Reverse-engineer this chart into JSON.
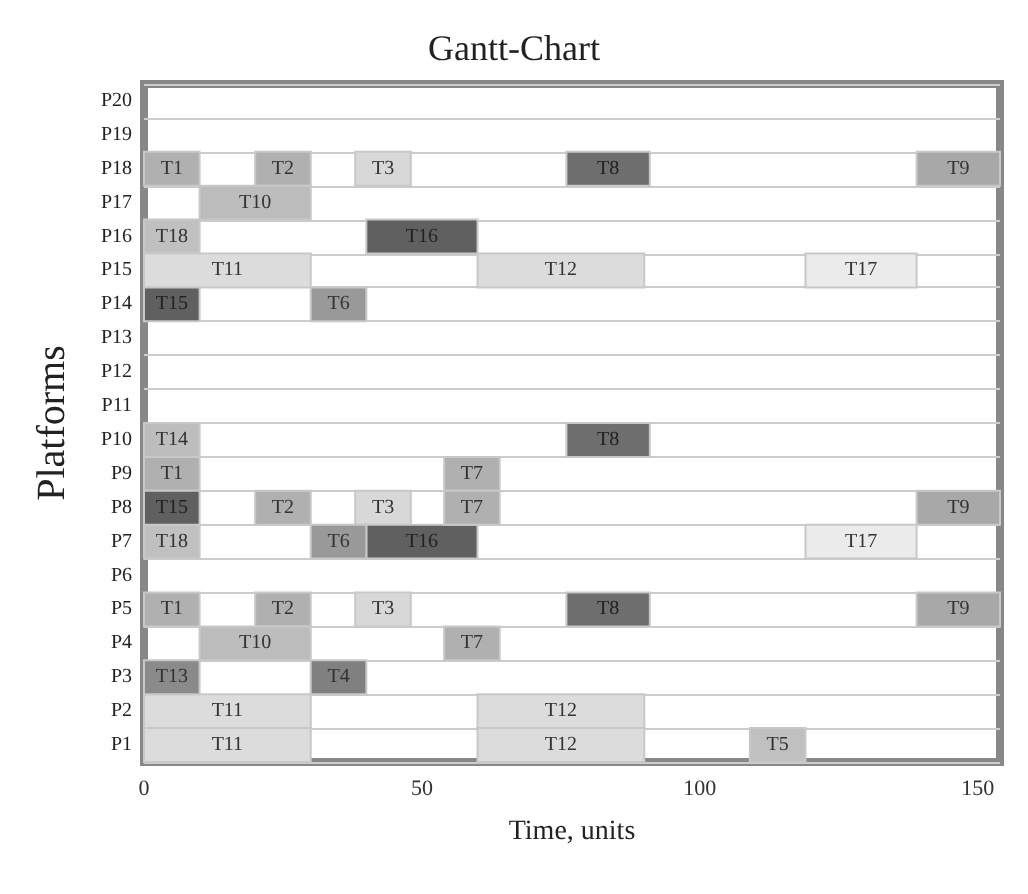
{
  "chart_data": {
    "type": "bar",
    "orientation": "horizontal",
    "title": "Gantt-Chart",
    "xlabel": "Time, units",
    "ylabel": "Platforms",
    "categories": [
      "P20",
      "P19",
      "P18",
      "P17",
      "P16",
      "P15",
      "P14",
      "P13",
      "P12",
      "P11",
      "P10",
      "P9",
      "P8",
      "P7",
      "P6",
      "P5",
      "P4",
      "P3",
      "P2",
      "P1"
    ],
    "xlim": [
      0,
      154
    ],
    "xticks": [
      0,
      50,
      100,
      150
    ],
    "grid": "y",
    "series": [
      {
        "name": "T1",
        "color": "#b0b0b0",
        "values": [
          null,
          null,
          10,
          null,
          null,
          null,
          null,
          null,
          null,
          null,
          null,
          10,
          null,
          null,
          null,
          10,
          null,
          null,
          null,
          null
        ],
        "base": [
          null,
          null,
          0,
          null,
          null,
          null,
          null,
          null,
          null,
          null,
          null,
          0,
          null,
          null,
          null,
          0,
          null,
          null,
          null,
          null
        ]
      },
      {
        "name": "T2",
        "color": "#b0b0b0",
        "values": [
          null,
          null,
          10,
          null,
          null,
          null,
          null,
          null,
          null,
          null,
          null,
          null,
          10,
          null,
          null,
          10,
          null,
          null,
          null,
          null
        ],
        "base": [
          null,
          null,
          20,
          null,
          null,
          null,
          null,
          null,
          null,
          null,
          null,
          null,
          20,
          null,
          null,
          20,
          null,
          null,
          null,
          null
        ]
      },
      {
        "name": "T3",
        "color": "#d8d8d8",
        "values": [
          null,
          null,
          10,
          null,
          null,
          null,
          null,
          null,
          null,
          null,
          null,
          null,
          10,
          null,
          null,
          10,
          null,
          null,
          null,
          null
        ],
        "base": [
          null,
          null,
          38,
          null,
          null,
          null,
          null,
          null,
          null,
          null,
          null,
          null,
          38,
          null,
          null,
          38,
          null,
          null,
          null,
          null
        ]
      },
      {
        "name": "T8",
        "color": "#6e6e6e",
        "values": [
          null,
          null,
          15,
          null,
          null,
          null,
          null,
          null,
          null,
          null,
          15,
          null,
          null,
          null,
          null,
          15,
          null,
          null,
          null,
          null
        ],
        "base": [
          null,
          null,
          76,
          null,
          null,
          null,
          null,
          null,
          null,
          null,
          76,
          null,
          null,
          null,
          null,
          76,
          null,
          null,
          null,
          null
        ]
      },
      {
        "name": "T9",
        "color": "#a8a8a8",
        "values": [
          null,
          null,
          15,
          null,
          null,
          null,
          null,
          null,
          null,
          null,
          null,
          null,
          15,
          null,
          null,
          15,
          null,
          null,
          null,
          null
        ],
        "base": [
          null,
          null,
          139,
          null,
          null,
          null,
          null,
          null,
          null,
          null,
          null,
          null,
          139,
          null,
          null,
          139,
          null,
          null,
          null,
          null
        ]
      },
      {
        "name": "T10",
        "color": "#bcbcbc",
        "values": [
          null,
          null,
          null,
          20,
          null,
          null,
          null,
          null,
          null,
          null,
          null,
          null,
          null,
          null,
          null,
          null,
          20,
          null,
          null,
          null
        ],
        "base": [
          null,
          null,
          null,
          10,
          null,
          null,
          null,
          null,
          null,
          null,
          null,
          null,
          null,
          null,
          null,
          null,
          10,
          null,
          null,
          null
        ]
      },
      {
        "name": "T18",
        "color": "#c0c0c0",
        "values": [
          null,
          null,
          null,
          null,
          10,
          null,
          null,
          null,
          null,
          null,
          null,
          null,
          null,
          10,
          null,
          null,
          null,
          null,
          null,
          null
        ],
        "base": [
          null,
          null,
          null,
          null,
          0,
          null,
          null,
          null,
          null,
          null,
          null,
          null,
          null,
          0,
          null,
          null,
          null,
          null,
          null,
          null
        ]
      },
      {
        "name": "T16",
        "color": "#606060",
        "values": [
          null,
          null,
          null,
          null,
          20,
          null,
          null,
          null,
          null,
          null,
          null,
          null,
          null,
          20,
          null,
          null,
          null,
          null,
          null,
          null
        ],
        "base": [
          null,
          null,
          null,
          null,
          40,
          null,
          null,
          null,
          null,
          null,
          null,
          null,
          null,
          40,
          null,
          null,
          null,
          null,
          null,
          null
        ]
      },
      {
        "name": "T11",
        "color": "#dcdcdc",
        "values": [
          null,
          null,
          null,
          null,
          null,
          30,
          null,
          null,
          null,
          null,
          null,
          null,
          null,
          null,
          null,
          null,
          null,
          null,
          30,
          30
        ],
        "base": [
          null,
          null,
          null,
          null,
          null,
          0,
          null,
          null,
          null,
          null,
          null,
          null,
          null,
          null,
          null,
          null,
          null,
          null,
          0,
          0
        ]
      },
      {
        "name": "T12",
        "color": "#dcdcdc",
        "values": [
          null,
          null,
          null,
          null,
          null,
          30,
          null,
          null,
          null,
          null,
          null,
          null,
          null,
          null,
          null,
          null,
          null,
          null,
          30,
          30
        ],
        "base": [
          null,
          null,
          null,
          null,
          null,
          60,
          null,
          null,
          null,
          null,
          null,
          null,
          null,
          null,
          null,
          null,
          null,
          null,
          60,
          60
        ]
      },
      {
        "name": "T17",
        "color": "#ebebeb",
        "values": [
          null,
          null,
          null,
          null,
          null,
          20,
          null,
          null,
          null,
          null,
          null,
          null,
          null,
          20,
          null,
          null,
          null,
          null,
          null,
          null
        ],
        "base": [
          null,
          null,
          null,
          null,
          null,
          119,
          null,
          null,
          null,
          null,
          null,
          null,
          null,
          119,
          null,
          null,
          null,
          null,
          null,
          null
        ]
      },
      {
        "name": "T15",
        "color": "#606060",
        "values": [
          null,
          null,
          null,
          null,
          null,
          null,
          10,
          null,
          null,
          null,
          null,
          null,
          10,
          null,
          null,
          null,
          null,
          null,
          null,
          null
        ],
        "base": [
          null,
          null,
          null,
          null,
          null,
          null,
          0,
          null,
          null,
          null,
          null,
          null,
          0,
          null,
          null,
          null,
          null,
          null,
          null,
          null
        ]
      },
      {
        "name": "T6",
        "color": "#999999",
        "values": [
          null,
          null,
          null,
          null,
          null,
          null,
          10,
          null,
          null,
          null,
          null,
          null,
          null,
          10,
          null,
          null,
          null,
          null,
          null,
          null
        ],
        "base": [
          null,
          null,
          null,
          null,
          null,
          null,
          30,
          null,
          null,
          null,
          null,
          null,
          null,
          30,
          null,
          null,
          null,
          null,
          null,
          null
        ]
      },
      {
        "name": "T14",
        "color": "#bdbdbd",
        "values": [
          null,
          null,
          null,
          null,
          null,
          null,
          null,
          null,
          null,
          null,
          10,
          null,
          null,
          null,
          null,
          null,
          null,
          null,
          null,
          null
        ],
        "base": [
          null,
          null,
          null,
          null,
          null,
          null,
          null,
          null,
          null,
          null,
          0,
          null,
          null,
          null,
          null,
          null,
          null,
          null,
          null,
          null
        ]
      },
      {
        "name": "T7",
        "color": "#b0b0b0",
        "values": [
          null,
          null,
          null,
          null,
          null,
          null,
          null,
          null,
          null,
          null,
          null,
          10,
          10,
          null,
          null,
          null,
          10,
          null,
          null,
          null
        ],
        "base": [
          null,
          null,
          null,
          null,
          null,
          null,
          null,
          null,
          null,
          null,
          null,
          54,
          54,
          null,
          null,
          null,
          54,
          null,
          null,
          null
        ]
      },
      {
        "name": "T13",
        "color": "#8a8a8a",
        "values": [
          null,
          null,
          null,
          null,
          null,
          null,
          null,
          null,
          null,
          null,
          null,
          null,
          null,
          null,
          null,
          null,
          null,
          10,
          null,
          null
        ],
        "base": [
          null,
          null,
          null,
          null,
          null,
          null,
          null,
          null,
          null,
          null,
          null,
          null,
          null,
          null,
          null,
          null,
          null,
          0,
          null,
          null
        ]
      },
      {
        "name": "T4",
        "color": "#808080",
        "values": [
          null,
          null,
          null,
          null,
          null,
          null,
          null,
          null,
          null,
          null,
          null,
          null,
          null,
          null,
          null,
          null,
          null,
          10,
          null,
          null
        ],
        "base": [
          null,
          null,
          null,
          null,
          null,
          null,
          null,
          null,
          null,
          null,
          null,
          null,
          null,
          null,
          null,
          null,
          null,
          30,
          null,
          null
        ]
      },
      {
        "name": "T5",
        "color": "#c0c0c0",
        "values": [
          null,
          null,
          null,
          null,
          null,
          null,
          null,
          null,
          null,
          null,
          null,
          null,
          null,
          null,
          null,
          null,
          null,
          null,
          null,
          10
        ],
        "base": [
          null,
          null,
          null,
          null,
          null,
          null,
          null,
          null,
          null,
          null,
          null,
          null,
          null,
          null,
          null,
          null,
          null,
          null,
          null,
          109
        ]
      }
    ]
  }
}
